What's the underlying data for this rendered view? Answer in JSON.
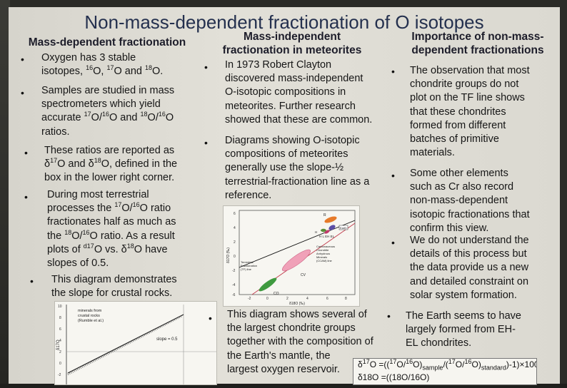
{
  "title": "Non-mass-dependent fractionation of O isotopes",
  "col1": {
    "heading": "Mass-dependent fractionation",
    "b1": {
      "a": "Oxygen has 3 stable",
      "b": "isotopes, ",
      "m1": "16",
      "c": "O, ",
      "m2": "17",
      "d": "O and ",
      "m3": "18",
      "e": "O."
    },
    "b2": {
      "l1": "Samples are studied in mass",
      "l2": "spectrometers which yield",
      "a": "accurate ",
      "m1": "17",
      "b": "O/",
      "m2": "16",
      "c": "O and ",
      "m3": "18",
      "d": "O/",
      "m4": "16",
      "e": "O",
      "l4": "ratios."
    },
    "b3": {
      "l1": "These ratios are reported as",
      "d1": "δ",
      "m1": "17",
      "a": "O and δ",
      "m2": "18",
      "b": "O, defined in the",
      "l3": "box in the lower right corner."
    },
    "b4": {
      "l1": "During most terrestrial",
      "a": "processes the ",
      "m1": "17",
      "b": "O/",
      "m2": "16",
      "c": "O ratio",
      "l3": "fractionates half as much as",
      "d": "the ",
      "m3": "18",
      "e": "O/",
      "m4": "16",
      "f": "O ratio. As a result",
      "g": "plots of  ",
      "m5": "d17",
      "h": "O vs. δ",
      "m6": "18",
      "i": "O have",
      "l6": "slopes of 0.5."
    },
    "b5": {
      "l1": "This diagram demonstrates",
      "l2": "the slope for crustal rocks."
    }
  },
  "col2": {
    "heading1": "Mass-independent",
    "heading2": "fractionation in meteorites",
    "b1": [
      "In 1973 Robert Clayton",
      "discovered mass-independent",
      "O-isotopic compositions in",
      "meteorites. Further research",
      "showed that these are common."
    ],
    "b2": [
      "Diagrams showing O-isotopic",
      "compositions of meteorites",
      "generally use the slope-½",
      "terrestrial-fractionation line as a",
      "reference."
    ],
    "b3": [
      "This diagram shows several of",
      "the largest chondrite groups",
      "together with the composition of",
      "the Earth's mantle, the",
      "largest oxygen reservoir."
    ]
  },
  "col3": {
    "heading1": "Importance of non-mass-",
    "heading2": "dependent fractionations",
    "b1": [
      "The observation that most",
      "chondrite groups do not",
      "plot on the TF line shows",
      "that these chondrites",
      "formed from different",
      "batches of primitive",
      "materials."
    ],
    "b2": [
      "Some other elements",
      "such as Cr also record",
      "non-mass-dependent",
      "isotopic fractionations that",
      "confirm this view."
    ],
    "b3": [
      "We do not understand the",
      "details of this process but",
      "the data provide us a new",
      "and detailed constraint on",
      "solar system formation."
    ],
    "b4": [
      "The Earth seems to have",
      "largely formed from EH-",
      "EL chondrites."
    ]
  },
  "formula": {
    "a": "δ",
    "s1": "17",
    "b": "O =((",
    "s2": "17",
    "c": "O/",
    "s3": "16",
    "d": "O)",
    "sub1": "sample",
    "e": "/(",
    "s4": "17",
    "f": "O/",
    "s5": "16",
    "g": "O)",
    "sub2": "standard",
    "h": ")-1)×1000",
    "line2": "δ18O =((18O/16O)"
  },
  "fig_left": {
    "ylabel": "δ17O",
    "label_minerals": [
      "minerals from",
      "crustal rocks",
      "(Rumble et al.)"
    ],
    "label_slope": "slope = 0.5",
    "yticks": [
      "10",
      "8",
      "6",
      "4",
      "2",
      "0",
      "-2",
      "-4"
    ]
  },
  "fig_center": {
    "ylabel": "δ17O (‰)",
    "xlabel": "δ18O (‰)",
    "labels": {
      "r": "R",
      "earth": "Earth",
      "hlel": "H L EH EL",
      "h": "H",
      "tf": [
        "Terrestrial",
        "Fractionation",
        "(TF) line"
      ],
      "ccam": [
        "Carbonaceous",
        "Chondrite",
        "Anhydrous",
        "Minerals",
        "(CCAM) line"
      ],
      "cv": "CV",
      "co": "CO"
    },
    "yticks": [
      "6",
      "4",
      "2",
      "0",
      "-2",
      "-4",
      "-6"
    ],
    "xticks": [
      "-2",
      "0",
      "2",
      "4",
      "6",
      "8"
    ]
  }
}
